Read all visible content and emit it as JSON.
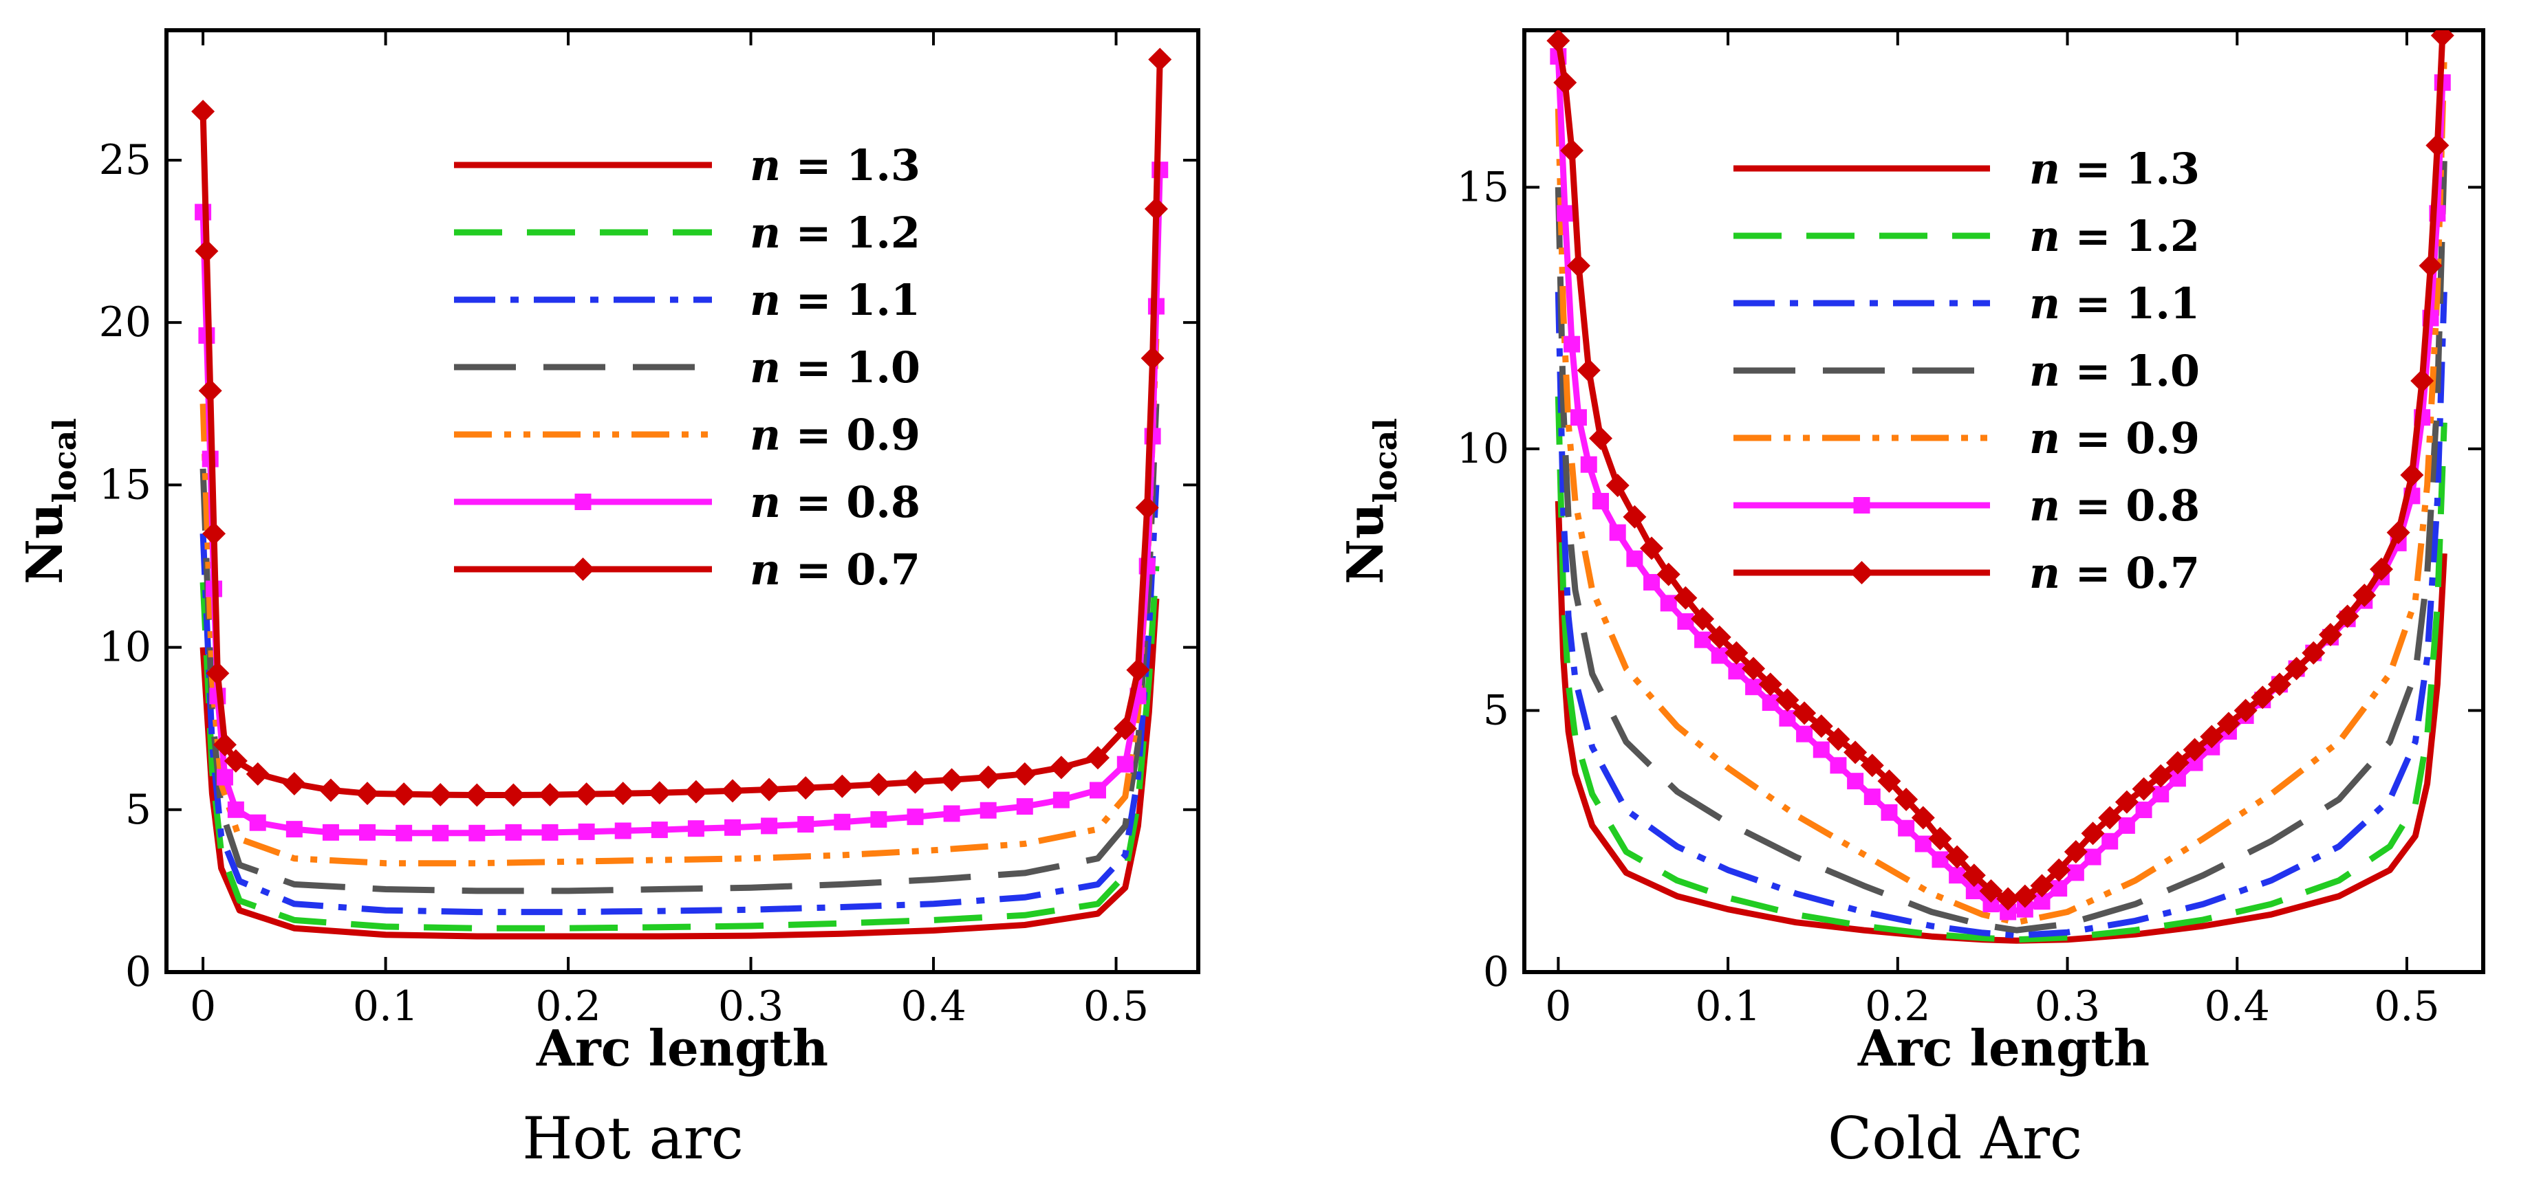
{
  "chart_data": [
    {
      "type": "line",
      "title": "",
      "caption": "Hot arc",
      "xlabel": "Arc length",
      "ylabel_main": "Nu",
      "ylabel_sub": "local",
      "xlim": [
        -0.02,
        0.545
      ],
      "ylim": [
        0,
        29
      ],
      "xticks": [
        0,
        0.1,
        0.2,
        0.3,
        0.4,
        0.5
      ],
      "xtick_labels": [
        "0",
        "0.1",
        "0.2",
        "0.3",
        "0.4",
        "0.5"
      ],
      "yticks": [
        0,
        5,
        10,
        15,
        20,
        25
      ],
      "ytick_labels": [
        "0",
        "5",
        "10",
        "15",
        "20",
        "25"
      ],
      "legend_position": "top-center",
      "series": [
        {
          "name": "n = 1.3",
          "color": "#cc0000",
          "style": "solid",
          "marker": "none",
          "x": [
            0,
            0.005,
            0.01,
            0.02,
            0.05,
            0.1,
            0.15,
            0.2,
            0.25,
            0.3,
            0.35,
            0.4,
            0.45,
            0.49,
            0.505,
            0.512,
            0.518,
            0.522
          ],
          "y": [
            10,
            5.5,
            3.2,
            1.9,
            1.35,
            1.15,
            1.1,
            1.1,
            1.1,
            1.12,
            1.18,
            1.28,
            1.45,
            1.8,
            2.6,
            4.5,
            8.0,
            11.5
          ]
        },
        {
          "name": "n = 1.2",
          "color": "#22cc22",
          "style": "dash",
          "marker": "none",
          "x": [
            0,
            0.005,
            0.01,
            0.02,
            0.05,
            0.1,
            0.15,
            0.2,
            0.25,
            0.3,
            0.35,
            0.4,
            0.45,
            0.49,
            0.505,
            0.512,
            0.518,
            0.522
          ],
          "y": [
            12,
            6.2,
            3.7,
            2.2,
            1.6,
            1.4,
            1.35,
            1.35,
            1.38,
            1.42,
            1.5,
            1.6,
            1.75,
            2.1,
            3.0,
            5.2,
            9.0,
            12.5
          ]
        },
        {
          "name": "n = 1.1",
          "color": "#2233ee",
          "style": "dashdot",
          "marker": "none",
          "x": [
            0,
            0.005,
            0.01,
            0.02,
            0.05,
            0.1,
            0.15,
            0.2,
            0.25,
            0.3,
            0.35,
            0.4,
            0.45,
            0.49,
            0.505,
            0.512,
            0.518,
            0.522
          ],
          "y": [
            13.5,
            7.0,
            4.2,
            2.8,
            2.1,
            1.9,
            1.85,
            1.85,
            1.88,
            1.92,
            2.0,
            2.1,
            2.3,
            2.7,
            3.6,
            6.0,
            10.5,
            15.0
          ]
        },
        {
          "name": "n = 1.0",
          "color": "#555555",
          "style": "longdash",
          "marker": "none",
          "x": [
            0,
            0.005,
            0.01,
            0.02,
            0.05,
            0.1,
            0.15,
            0.2,
            0.25,
            0.3,
            0.35,
            0.4,
            0.45,
            0.49,
            0.505,
            0.512,
            0.518,
            0.522
          ],
          "y": [
            15.5,
            8.0,
            5.0,
            3.3,
            2.7,
            2.55,
            2.5,
            2.5,
            2.55,
            2.6,
            2.7,
            2.85,
            3.05,
            3.5,
            4.5,
            7.0,
            12.0,
            17.5
          ]
        },
        {
          "name": "n = 0.9",
          "color": "#ff7f0e",
          "style": "dashdotdot",
          "marker": "none",
          "x": [
            0,
            0.005,
            0.01,
            0.02,
            0.05,
            0.1,
            0.15,
            0.2,
            0.25,
            0.3,
            0.35,
            0.4,
            0.45,
            0.49,
            0.505,
            0.512,
            0.518,
            0.522
          ],
          "y": [
            17.5,
            9.0,
            5.8,
            4.1,
            3.5,
            3.35,
            3.35,
            3.4,
            3.45,
            3.5,
            3.6,
            3.75,
            3.95,
            4.4,
            5.4,
            8.0,
            13.5,
            19.5
          ]
        },
        {
          "name": "n = 0.8",
          "color": "#ff1aff",
          "style": "solid",
          "marker": "square",
          "x": [
            0,
            0.002,
            0.004,
            0.006,
            0.008,
            0.012,
            0.018,
            0.03,
            0.05,
            0.07,
            0.09,
            0.11,
            0.13,
            0.15,
            0.17,
            0.19,
            0.21,
            0.23,
            0.25,
            0.27,
            0.29,
            0.31,
            0.33,
            0.35,
            0.37,
            0.39,
            0.41,
            0.43,
            0.45,
            0.47,
            0.49,
            0.505,
            0.512,
            0.517,
            0.52,
            0.522,
            0.524
          ],
          "y": [
            23.4,
            19.6,
            15.8,
            11.8,
            8.5,
            6.0,
            5.0,
            4.6,
            4.4,
            4.3,
            4.3,
            4.28,
            4.28,
            4.28,
            4.3,
            4.3,
            4.32,
            4.35,
            4.38,
            4.42,
            4.45,
            4.5,
            4.55,
            4.62,
            4.7,
            4.78,
            4.88,
            4.98,
            5.1,
            5.3,
            5.6,
            6.4,
            8.5,
            12.5,
            16.5,
            20.5,
            24.7
          ]
        },
        {
          "name": "n = 0.7",
          "color": "#cc0000",
          "style": "solid",
          "marker": "diamond",
          "x": [
            0,
            0.002,
            0.004,
            0.006,
            0.008,
            0.012,
            0.018,
            0.03,
            0.05,
            0.07,
            0.09,
            0.11,
            0.13,
            0.15,
            0.17,
            0.19,
            0.21,
            0.23,
            0.25,
            0.27,
            0.29,
            0.31,
            0.33,
            0.35,
            0.37,
            0.39,
            0.41,
            0.43,
            0.45,
            0.47,
            0.49,
            0.505,
            0.512,
            0.517,
            0.52,
            0.522,
            0.524
          ],
          "y": [
            26.5,
            22.2,
            17.9,
            13.5,
            9.2,
            7.0,
            6.5,
            6.1,
            5.8,
            5.6,
            5.5,
            5.48,
            5.46,
            5.45,
            5.45,
            5.46,
            5.48,
            5.5,
            5.52,
            5.55,
            5.58,
            5.62,
            5.67,
            5.72,
            5.78,
            5.85,
            5.92,
            6.0,
            6.1,
            6.3,
            6.6,
            7.5,
            9.3,
            14.3,
            18.9,
            23.5,
            28.1
          ]
        }
      ]
    },
    {
      "type": "line",
      "title": "",
      "caption": "Cold Arc",
      "xlabel": "Arc length",
      "ylabel_main": "Nu",
      "ylabel_sub": "local",
      "xlim": [
        -0.02,
        0.545
      ],
      "ylim": [
        0,
        18
      ],
      "xticks": [
        0,
        0.1,
        0.2,
        0.3,
        0.4,
        0.5
      ],
      "xtick_labels": [
        "0",
        "0.1",
        "0.2",
        "0.3",
        "0.4",
        "0.5"
      ],
      "yticks": [
        0,
        5,
        10,
        15
      ],
      "ytick_labels": [
        "0",
        "5",
        "10",
        "15"
      ],
      "legend_position": "top-center",
      "series": [
        {
          "name": "n = 1.3",
          "color": "#cc0000",
          "style": "solid",
          "marker": "none",
          "x": [
            0,
            0.003,
            0.006,
            0.01,
            0.02,
            0.04,
            0.07,
            0.1,
            0.14,
            0.18,
            0.22,
            0.25,
            0.27,
            0.3,
            0.34,
            0.38,
            0.42,
            0.46,
            0.49,
            0.505,
            0.512,
            0.518,
            0.522
          ],
          "y": [
            9,
            6.0,
            4.6,
            3.8,
            2.8,
            1.9,
            1.45,
            1.2,
            0.95,
            0.8,
            0.68,
            0.62,
            0.6,
            0.62,
            0.72,
            0.88,
            1.1,
            1.45,
            1.95,
            2.6,
            3.6,
            5.5,
            8.0
          ]
        },
        {
          "name": "n = 1.2",
          "color": "#22cc22",
          "style": "dash",
          "marker": "none",
          "x": [
            0,
            0.003,
            0.006,
            0.01,
            0.02,
            0.04,
            0.07,
            0.1,
            0.14,
            0.18,
            0.22,
            0.25,
            0.27,
            0.3,
            0.34,
            0.38,
            0.42,
            0.46,
            0.49,
            0.505,
            0.512,
            0.518,
            0.522
          ],
          "y": [
            11,
            7.2,
            5.5,
            4.5,
            3.4,
            2.3,
            1.75,
            1.42,
            1.1,
            0.88,
            0.72,
            0.65,
            0.62,
            0.66,
            0.8,
            1.0,
            1.3,
            1.75,
            2.4,
            3.2,
            4.5,
            7.0,
            10.5
          ]
        },
        {
          "name": "n = 1.1",
          "color": "#2233ee",
          "style": "dashdot",
          "marker": "none",
          "x": [
            0,
            0.003,
            0.006,
            0.01,
            0.02,
            0.04,
            0.07,
            0.1,
            0.14,
            0.18,
            0.22,
            0.25,
            0.27,
            0.3,
            0.34,
            0.38,
            0.42,
            0.46,
            0.49,
            0.505,
            0.512,
            0.518,
            0.522
          ],
          "y": [
            13,
            8.8,
            6.8,
            5.6,
            4.3,
            3.1,
            2.4,
            1.95,
            1.5,
            1.15,
            0.88,
            0.75,
            0.7,
            0.76,
            0.98,
            1.3,
            1.75,
            2.4,
            3.3,
            4.4,
            6.0,
            9.0,
            13.0
          ]
        },
        {
          "name": "n = 1.0",
          "color": "#555555",
          "style": "longdash",
          "marker": "none",
          "x": [
            0,
            0.003,
            0.006,
            0.01,
            0.02,
            0.04,
            0.07,
            0.1,
            0.14,
            0.18,
            0.22,
            0.25,
            0.27,
            0.3,
            0.34,
            0.38,
            0.42,
            0.46,
            0.49,
            0.505,
            0.512,
            0.518,
            0.522
          ],
          "y": [
            15,
            10.8,
            8.7,
            7.3,
            5.7,
            4.4,
            3.45,
            2.85,
            2.2,
            1.65,
            1.15,
            0.9,
            0.8,
            0.92,
            1.3,
            1.85,
            2.5,
            3.3,
            4.4,
            5.7,
            7.6,
            11.0,
            15.5
          ]
        },
        {
          "name": "n = 0.9",
          "color": "#ff7f0e",
          "style": "dashdotdot",
          "marker": "none",
          "x": [
            0,
            0.003,
            0.006,
            0.01,
            0.02,
            0.04,
            0.07,
            0.1,
            0.14,
            0.18,
            0.22,
            0.25,
            0.27,
            0.3,
            0.34,
            0.38,
            0.42,
            0.46,
            0.49,
            0.505,
            0.512,
            0.518,
            0.522
          ],
          "y": [
            16.5,
            12.6,
            10.5,
            9.0,
            7.3,
            5.8,
            4.7,
            3.9,
            3.0,
            2.25,
            1.5,
            1.1,
            0.95,
            1.15,
            1.75,
            2.55,
            3.4,
            4.4,
            5.7,
            7.1,
            9.3,
            13.0,
            17.5
          ]
        },
        {
          "name": "n = 0.8",
          "color": "#ff1aff",
          "style": "solid",
          "marker": "square",
          "x": [
            0,
            0.004,
            0.008,
            0.012,
            0.018,
            0.025,
            0.035,
            0.045,
            0.055,
            0.065,
            0.075,
            0.085,
            0.095,
            0.105,
            0.115,
            0.125,
            0.135,
            0.145,
            0.155,
            0.165,
            0.175,
            0.185,
            0.195,
            0.205,
            0.215,
            0.225,
            0.235,
            0.245,
            0.255,
            0.265,
            0.275,
            0.285,
            0.295,
            0.305,
            0.315,
            0.325,
            0.335,
            0.345,
            0.355,
            0.365,
            0.375,
            0.385,
            0.395,
            0.405,
            0.415,
            0.425,
            0.435,
            0.445,
            0.455,
            0.465,
            0.475,
            0.485,
            0.495,
            0.503,
            0.509,
            0.514,
            0.518,
            0.521
          ],
          "y": [
            17.5,
            14.5,
            12.0,
            10.6,
            9.7,
            9.0,
            8.4,
            7.9,
            7.45,
            7.05,
            6.7,
            6.35,
            6.05,
            5.75,
            5.45,
            5.15,
            4.85,
            4.55,
            4.25,
            3.95,
            3.65,
            3.35,
            3.05,
            2.75,
            2.45,
            2.15,
            1.85,
            1.55,
            1.3,
            1.15,
            1.2,
            1.35,
            1.6,
            1.9,
            2.2,
            2.5,
            2.8,
            3.1,
            3.4,
            3.7,
            4.0,
            4.3,
            4.6,
            4.9,
            5.2,
            5.5,
            5.8,
            6.1,
            6.4,
            6.75,
            7.1,
            7.55,
            8.2,
            9.1,
            10.6,
            12.5,
            14.5,
            17.0
          ]
        },
        {
          "name": "n = 0.7",
          "color": "#cc0000",
          "style": "solid",
          "marker": "diamond",
          "x": [
            0,
            0.004,
            0.008,
            0.012,
            0.018,
            0.025,
            0.035,
            0.045,
            0.055,
            0.065,
            0.075,
            0.085,
            0.095,
            0.105,
            0.115,
            0.125,
            0.135,
            0.145,
            0.155,
            0.165,
            0.175,
            0.185,
            0.195,
            0.205,
            0.215,
            0.225,
            0.235,
            0.245,
            0.255,
            0.265,
            0.275,
            0.285,
            0.295,
            0.305,
            0.315,
            0.325,
            0.335,
            0.345,
            0.355,
            0.365,
            0.375,
            0.385,
            0.395,
            0.405,
            0.415,
            0.425,
            0.435,
            0.445,
            0.455,
            0.465,
            0.475,
            0.485,
            0.495,
            0.503,
            0.509,
            0.514,
            0.518,
            0.521
          ],
          "y": [
            17.8,
            17.0,
            15.7,
            13.5,
            11.5,
            10.2,
            9.3,
            8.7,
            8.1,
            7.6,
            7.15,
            6.75,
            6.4,
            6.1,
            5.8,
            5.5,
            5.2,
            4.95,
            4.7,
            4.45,
            4.2,
            3.95,
            3.65,
            3.3,
            2.95,
            2.55,
            2.2,
            1.85,
            1.55,
            1.4,
            1.45,
            1.65,
            1.95,
            2.3,
            2.65,
            2.95,
            3.25,
            3.5,
            3.75,
            4.0,
            4.25,
            4.5,
            4.75,
            5.0,
            5.25,
            5.5,
            5.8,
            6.1,
            6.45,
            6.8,
            7.2,
            7.7,
            8.4,
            9.5,
            11.3,
            13.5,
            15.8,
            17.9
          ]
        }
      ]
    }
  ]
}
